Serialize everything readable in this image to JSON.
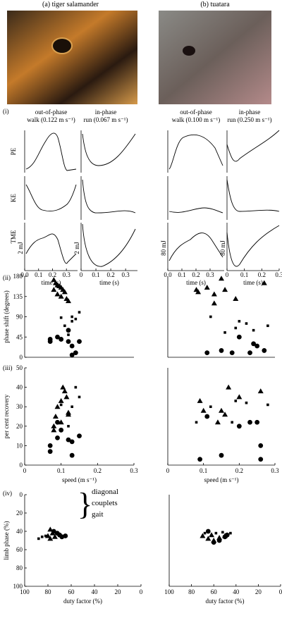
{
  "header": {
    "a": "(a) tiger salamander",
    "b": "(b) tuatara",
    "i": "(i)",
    "ii": "(ii)",
    "iii": "(iii)",
    "iv": "(iv)"
  },
  "energy": {
    "rows": [
      "PE",
      "KE",
      "TME"
    ],
    "time_label": "time (s)",
    "columns": [
      {
        "title": [
          "out-of-phase",
          "walk (0.122 m s⁻¹)"
        ],
        "scale": "2 mJ",
        "xlim": [
          0,
          0.38
        ],
        "xticks": [
          {
            "value": 0,
            "label": "0.0"
          },
          0.1,
          0.2,
          0.3
        ]
      },
      {
        "title": [
          "in-phase",
          "run (0.067 m s⁻¹)"
        ],
        "scale": "2 mJ",
        "xlim": [
          0,
          0.38
        ],
        "xticks": [
          0,
          0.1,
          0.2,
          0.3
        ]
      },
      {
        "title": [
          "out-of-phase",
          "walk (0.100 m s⁻¹)"
        ],
        "scale": "80 mJ",
        "xlim": [
          0,
          0.4
        ],
        "xticks": [
          {
            "value": 0,
            "label": "0.0"
          },
          0.1,
          0.2,
          0.3
        ]
      },
      {
        "title": [
          "in-phase",
          "run (0.250 m s⁻¹)"
        ],
        "scale": "80 mJ",
        "xlim": [
          0,
          0.3
        ],
        "xticks": [
          0,
          0.1,
          0.2,
          0.3
        ]
      }
    ]
  },
  "annotation": [
    "diagonal",
    "couplets",
    "gait"
  ],
  "chart_data": [
    {
      "type": "scatter",
      "ylabel": "phase shift (degrees)",
      "xlim": [
        0,
        0.3
      ],
      "ylim": [
        0,
        180
      ],
      "yticks": [
        0,
        45,
        90,
        135,
        180
      ],
      "series": [
        {
          "marker": "triangle",
          "color": "#000",
          "x": [
            0.08,
            0.085,
            0.09,
            0.095,
            0.1,
            0.105,
            0.11,
            0.09,
            0.1,
            0.115,
            0.12,
            0.08
          ],
          "values": [
            172,
            165,
            160,
            158,
            155,
            150,
            145,
            140,
            135,
            130,
            125,
            150
          ]
        },
        {
          "marker": "square",
          "color": "#000",
          "x": [
            0.1,
            0.11,
            0.12,
            0.13,
            0.14,
            0.15,
            0.12,
            0.13
          ],
          "values": [
            88,
            70,
            60,
            80,
            85,
            100,
            50,
            90
          ]
        },
        {
          "marker": "circle",
          "color": "#000",
          "x": [
            0.07,
            0.07,
            0.09,
            0.1,
            0.12,
            0.13,
            0.14,
            0.13,
            0.15,
            0.12
          ],
          "values": [
            35,
            40,
            45,
            40,
            35,
            25,
            10,
            5,
            35,
            60
          ]
        }
      ]
    },
    {
      "type": "scatter",
      "xlim": [
        0,
        0.3
      ],
      "ylim": [
        0,
        180
      ],
      "series": [
        {
          "marker": "triangle",
          "color": "#000",
          "x": [
            0.08,
            0.085,
            0.11,
            0.13,
            0.15,
            0.16,
            0.19,
            0.27,
            0.13
          ],
          "values": [
            150,
            145,
            155,
            120,
            175,
            150,
            130,
            165,
            140
          ]
        },
        {
          "marker": "square",
          "color": "#000",
          "x": [
            0.12,
            0.2,
            0.22,
            0.28,
            0.19,
            0.24,
            0.16
          ],
          "values": [
            90,
            80,
            75,
            70,
            65,
            60,
            55
          ]
        },
        {
          "marker": "circle",
          "color": "#000",
          "x": [
            0.11,
            0.15,
            0.18,
            0.2,
            0.24,
            0.25,
            0.27,
            0.23
          ],
          "values": [
            10,
            15,
            10,
            45,
            30,
            25,
            15,
            10
          ]
        }
      ]
    },
    {
      "type": "scatter",
      "ylabel": "per cent recovery",
      "xlabel": "speed (m s⁻¹)",
      "xlim": [
        0,
        0.3
      ],
      "xticks": [
        0,
        0.1,
        0.2,
        0.3
      ],
      "ylim": [
        0,
        50
      ],
      "yticks": [
        0,
        10,
        20,
        30,
        40,
        50
      ],
      "series": [
        {
          "marker": "triangle",
          "color": "#000",
          "x": [
            0.08,
            0.085,
            0.09,
            0.1,
            0.105,
            0.11,
            0.12,
            0.08,
            0.1,
            0.12,
            0.115
          ],
          "values": [
            20,
            25,
            30,
            33,
            40,
            38,
            27,
            18,
            22,
            26,
            35
          ]
        },
        {
          "marker": "square",
          "color": "#000",
          "x": [
            0.1,
            0.13,
            0.14,
            0.15,
            0.12
          ],
          "values": [
            31,
            30,
            40,
            35,
            20
          ]
        },
        {
          "marker": "circle",
          "color": "#000",
          "x": [
            0.07,
            0.07,
            0.09,
            0.1,
            0.12,
            0.13,
            0.13,
            0.15,
            0.09
          ],
          "values": [
            7,
            10,
            14,
            18,
            13,
            12,
            5,
            15,
            22
          ]
        }
      ]
    },
    {
      "type": "scatter",
      "xlabel": "speed (m s⁻¹)",
      "xlim": [
        0,
        0.3
      ],
      "xticks": [
        0,
        0.1,
        0.2,
        0.3
      ],
      "ylim": [
        0,
        50
      ],
      "series": [
        {
          "marker": "triangle",
          "color": "#000",
          "x": [
            0.09,
            0.1,
            0.15,
            0.16,
            0.17,
            0.2,
            0.26,
            0.14
          ],
          "values": [
            33,
            28,
            28,
            26,
            40,
            35,
            38,
            22
          ]
        },
        {
          "marker": "square",
          "color": "#000",
          "x": [
            0.08,
            0.12,
            0.19,
            0.22,
            0.28,
            0.18
          ],
          "values": [
            22,
            30,
            33,
            32,
            31,
            22
          ]
        },
        {
          "marker": "circle",
          "color": "#000",
          "x": [
            0.09,
            0.15,
            0.2,
            0.23,
            0.25,
            0.26,
            0.26,
            0.11
          ],
          "values": [
            3,
            5,
            20,
            22,
            22,
            10,
            3,
            25
          ]
        }
      ]
    },
    {
      "type": "scatter",
      "ylabel": "limb phase (%)",
      "xlabel": "duty factor (%)",
      "xlim": [
        100,
        0
      ],
      "xticks": [
        100,
        80,
        60,
        40,
        20,
        0
      ],
      "ylim": [
        100,
        0
      ],
      "yticks": [
        0,
        20,
        40,
        60,
        80,
        100
      ],
      "series": [
        {
          "marker": "triangle",
          "color": "#000",
          "x": [
            78,
            76,
            80,
            78,
            74
          ],
          "values": [
            38,
            42,
            45,
            48,
            46
          ]
        },
        {
          "marker": "square",
          "color": "#000",
          "x": [
            88,
            85,
            82
          ],
          "values": [
            48,
            46,
            45
          ]
        },
        {
          "marker": "circle",
          "color": "#000",
          "x": [
            72,
            70,
            68,
            65,
            75
          ],
          "values": [
            42,
            44,
            46,
            45,
            40
          ]
        }
      ]
    },
    {
      "type": "scatter",
      "xlabel": "duty factor (%)",
      "xlim": [
        100,
        0
      ],
      "xticks": [
        100,
        80,
        60,
        40,
        20,
        0
      ],
      "ylim": [
        100,
        0
      ],
      "series": [
        {
          "marker": "triangle",
          "color": "#000",
          "x": [
            70,
            65,
            60,
            55,
            50,
            62
          ],
          "values": [
            45,
            48,
            50,
            47,
            45,
            44
          ]
        },
        {
          "marker": "square",
          "color": "#000",
          "x": [
            68,
            58,
            52,
            45
          ],
          "values": [
            42,
            42,
            41,
            42
          ]
        },
        {
          "marker": "circle",
          "color": "#000",
          "x": [
            60,
            55,
            50,
            48,
            65
          ],
          "values": [
            52,
            50,
            46,
            44,
            40
          ]
        }
      ]
    }
  ]
}
